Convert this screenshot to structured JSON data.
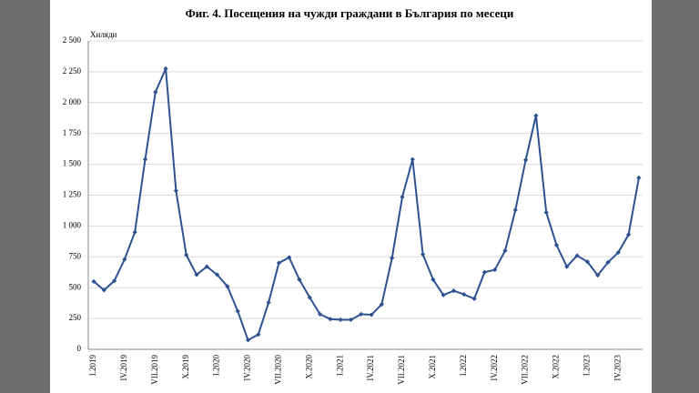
{
  "chart_data": {
    "type": "line",
    "title": "Фиг. 4. Посещения на чужди граждани в България по месеци",
    "y_axis_label": "Хиляди",
    "categories": [
      "I.2019",
      null,
      null,
      "IV.2019",
      null,
      null,
      "VII.2019",
      null,
      null,
      "X.2019",
      null,
      null,
      "I.2020",
      null,
      null,
      "IV.2020",
      null,
      null,
      "VII.2020",
      null,
      null,
      "X.2020",
      null,
      null,
      "I.2021",
      null,
      null,
      "IV.2021",
      null,
      null,
      "VII.2021",
      null,
      null,
      "X.2021",
      null,
      null,
      "I.2022",
      null,
      null,
      "IV.2022",
      null,
      null,
      "VII.2022",
      null,
      null,
      "X.2022",
      null,
      null,
      "I.2023",
      null,
      null,
      "IV.2023",
      null,
      null
    ],
    "series": [
      {
        "name": "Посещения",
        "color": "#2e5290",
        "values": [
          550,
          480,
          555,
          730,
          950,
          1540,
          2085,
          2275,
          1285,
          765,
          605,
          670,
          605,
          510,
          310,
          75,
          120,
          380,
          700,
          745,
          565,
          420,
          285,
          245,
          240,
          240,
          285,
          280,
          365,
          740,
          1235,
          1540,
          770,
          565,
          440,
          475,
          445,
          410,
          625,
          645,
          800,
          1130,
          1535,
          1895,
          1110,
          845,
          670,
          760,
          710,
          600,
          705,
          785,
          930,
          1390
        ]
      }
    ],
    "ylim": [
      0,
      2500
    ],
    "yticks": [
      0,
      250,
      500,
      750,
      {
        "value": 1000,
        "label": "1 000"
      },
      {
        "value": 1250,
        "label": "1 250"
      },
      {
        "value": 1500,
        "label": "1 500"
      },
      {
        "value": 1750,
        "label": "1 750"
      },
      {
        "value": 2000,
        "label": "2 000"
      },
      {
        "value": 2250,
        "label": "2 250"
      },
      {
        "value": 2500,
        "label": "2 500"
      }
    ],
    "grid": true
  }
}
